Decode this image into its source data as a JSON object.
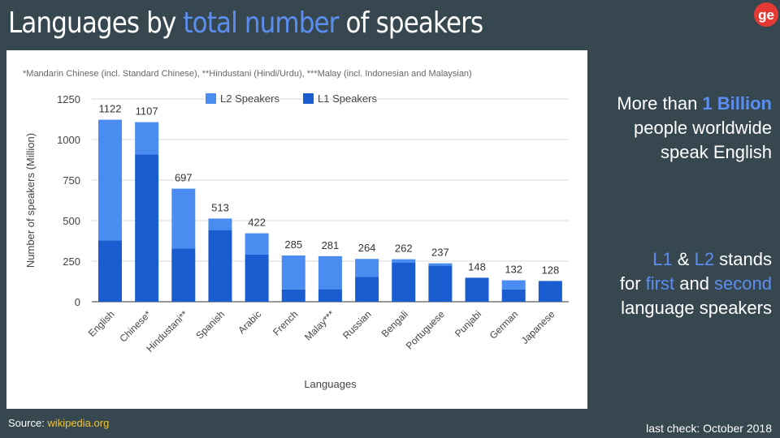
{
  "header": {
    "title_part1": "Languages by ",
    "title_highlight": "total number",
    "title_part2": " of speakers"
  },
  "logo": {
    "icon": "ge-logo-icon",
    "text": "ge",
    "color": "#e53935"
  },
  "side_note_1": {
    "line1_pre": "More than ",
    "line1_highlight": "1 Billion",
    "line2": "people worldwide",
    "line3": "speak English"
  },
  "side_note_2": {
    "l1": "L1",
    "amp": " & ",
    "l2": "L2",
    "stands": " stands",
    "for": "for ",
    "first": "first",
    "and": " and ",
    "second": "second",
    "line3": "language speakers"
  },
  "footer": {
    "source_label": "Source: ",
    "source_link": "wikipedia.org",
    "last_check": "last check: October 2018"
  },
  "colors": {
    "background": "#37474f",
    "accent": "#5b8ef0",
    "l1": "#1a5dd1",
    "l2": "#4a8cef"
  },
  "chart_data": {
    "type": "bar",
    "stacked": true,
    "footnote": "*Mandarin Chinese (incl. Standard Chinese), **Hindustani (Hindi/Urdu), ***Malay (incl. Indonesian and Malaysian)",
    "categories": [
      "English",
      "Chinese*",
      "Hindustani**",
      "Spanish",
      "Arabic",
      "French",
      "Malay***",
      "Russian",
      "Bengali",
      "Portuguese",
      "Punjabi",
      "German",
      "Japanese"
    ],
    "series": [
      {
        "name": "L1 Speakers",
        "values": [
          378,
          908,
          329,
          442,
          290,
          76,
          77,
          153,
          242,
          222,
          148,
          76,
          128
        ]
      },
      {
        "name": "L2 Speakers",
        "values": [
          744,
          199,
          368,
          71,
          132,
          209,
          204,
          111,
          20,
          15,
          0,
          56,
          0
        ]
      }
    ],
    "totals": [
      1122,
      1107,
      697,
      513,
      422,
      285,
      281,
      264,
      262,
      237,
      148,
      132,
      128
    ],
    "legend_order": [
      "L2 Speakers",
      "L1 Speakers"
    ],
    "xlabel": "Languages",
    "ylabel": "Number of speakers (Million)",
    "ylim": [
      0,
      1250
    ],
    "yticks": [
      0,
      250,
      500,
      750,
      1000,
      1250
    ],
    "grid": true,
    "legend_position": "top"
  }
}
